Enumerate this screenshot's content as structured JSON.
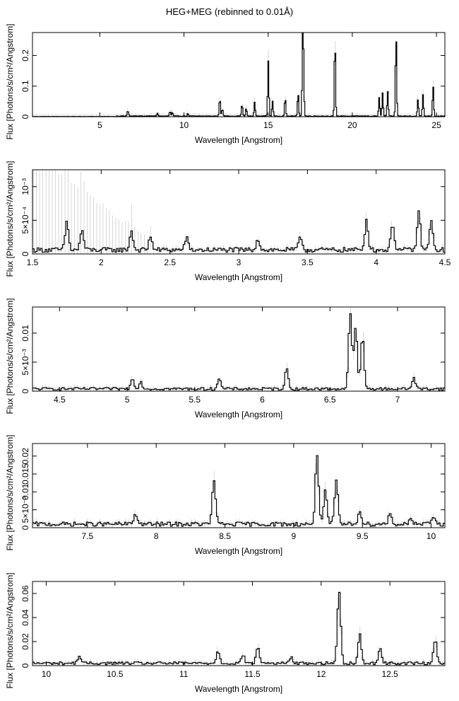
{
  "title": "HEG+MEG (rebinned to 0.01Å)",
  "colors": {
    "line": "#000000",
    "errorbar": "#bdbdbd",
    "background": "#ffffff"
  },
  "chart_data": [
    {
      "type": "line",
      "xlabel": "Wavelength [Angstrom]",
      "ylabel": "Flux [Photons/s/cm²/Angstrom]",
      "xlim": [
        1.0,
        25.5
      ],
      "ylim": [
        0,
        0.275
      ],
      "xticks": [
        5,
        10,
        15,
        20,
        25
      ],
      "yticks": [
        0,
        0.1,
        0.2
      ],
      "ytick_labels": [
        "0",
        "0.1",
        "0.2"
      ],
      "baseline": 0.002,
      "peaks": [
        [
          6.65,
          0.013
        ],
        [
          6.7,
          0.008
        ],
        [
          8.42,
          0.01
        ],
        [
          9.17,
          0.016
        ],
        [
          9.31,
          0.012
        ],
        [
          10.23,
          0.008
        ],
        [
          12.13,
          0.06
        ],
        [
          12.28,
          0.024
        ],
        [
          13.45,
          0.04
        ],
        [
          13.7,
          0.025
        ],
        [
          14.2,
          0.045
        ],
        [
          15.01,
          0.18
        ],
        [
          15.26,
          0.05
        ],
        [
          16.01,
          0.06
        ],
        [
          16.78,
          0.075
        ],
        [
          17.05,
          0.21
        ],
        [
          17.1,
          0.155
        ],
        [
          18.97,
          0.25
        ],
        [
          21.6,
          0.06
        ],
        [
          21.8,
          0.075
        ],
        [
          22.1,
          0.08
        ],
        [
          22.6,
          0.27
        ],
        [
          23.9,
          0.055
        ],
        [
          24.2,
          0.07
        ],
        [
          24.8,
          0.1
        ]
      ]
    },
    {
      "type": "line",
      "xlabel": "Wavelength [Angstrom]",
      "ylabel": "Flux [Photons/s/cm²/Angstrom]",
      "xlim": [
        1.5,
        4.5
      ],
      "ylim": [
        0,
        0.00125
      ],
      "xticks": [
        1.5,
        2,
        2.5,
        3,
        3.5,
        4,
        4.5
      ],
      "yticks": [
        0,
        0.0005,
        0.001
      ],
      "ytick_labels": [
        "0",
        "5×10⁻⁴",
        "10⁻³"
      ],
      "baseline": 6e-05,
      "peaks": [
        [
          1.75,
          0.00042
        ],
        [
          1.86,
          0.0003
        ],
        [
          2.22,
          0.00028
        ],
        [
          2.36,
          0.0002
        ],
        [
          2.62,
          0.00018
        ],
        [
          3.14,
          0.00017
        ],
        [
          3.45,
          0.0002
        ],
        [
          3.93,
          0.00045
        ],
        [
          4.12,
          0.0004
        ],
        [
          4.31,
          0.00055
        ],
        [
          4.4,
          0.00042
        ]
      ]
    },
    {
      "type": "line",
      "xlabel": "Wavelength [Angstrom]",
      "ylabel": "Flux [Photons/s/cm²/Angstrom]",
      "xlim": [
        4.3,
        7.35
      ],
      "ylim": [
        0,
        0.0145
      ],
      "xticks": [
        4.5,
        5,
        5.5,
        6,
        6.5,
        7
      ],
      "yticks": [
        0,
        0.005,
        0.01
      ],
      "ytick_labels": [
        "0",
        "5×10⁻³",
        "0.01"
      ],
      "baseline": 0.0004,
      "peaks": [
        [
          5.04,
          0.0018
        ],
        [
          5.1,
          0.0012
        ],
        [
          5.68,
          0.0018
        ],
        [
          6.18,
          0.0035
        ],
        [
          6.65,
          0.013
        ],
        [
          6.69,
          0.0105
        ],
        [
          6.74,
          0.009
        ],
        [
          7.12,
          0.002
        ]
      ]
    },
    {
      "type": "line",
      "xlabel": "Wavelength [Angstrom]",
      "ylabel": "Flux [Photons/s/cm²/Angstrom]",
      "xlim": [
        7.1,
        10.1
      ],
      "ylim": [
        0,
        0.0235
      ],
      "xticks": [
        7.5,
        8,
        8.5,
        9,
        9.5,
        10
      ],
      "yticks": [
        0,
        0.005,
        0.01,
        0.015,
        0.02
      ],
      "ytick_labels": [
        "0",
        "5×10⁻³",
        "0.01",
        "0.015",
        "0.02"
      ],
      "baseline": 0.001,
      "peaks": [
        [
          7.85,
          0.003
        ],
        [
          8.42,
          0.0125
        ],
        [
          9.17,
          0.0195
        ],
        [
          9.23,
          0.009
        ],
        [
          9.31,
          0.012
        ],
        [
          9.48,
          0.004
        ],
        [
          9.7,
          0.003
        ],
        [
          9.85,
          0.002
        ],
        [
          10.02,
          0.002
        ]
      ]
    },
    {
      "type": "line",
      "xlabel": "Wavelength [Angstrom]",
      "ylabel": "Flux [Photons/s/cm²/Angstrom]",
      "xlim": [
        9.9,
        12.9
      ],
      "ylim": [
        0,
        0.07
      ],
      "xticks": [
        10,
        10.5,
        11,
        11.5,
        12,
        12.5
      ],
      "yticks": [
        0,
        0.02,
        0.04,
        0.06
      ],
      "ytick_labels": [
        "0",
        "0.02",
        "0.04",
        "0.06"
      ],
      "baseline": 0.002,
      "peaks": [
        [
          10.24,
          0.006
        ],
        [
          11.25,
          0.01
        ],
        [
          11.43,
          0.007
        ],
        [
          11.54,
          0.013
        ],
        [
          11.78,
          0.005
        ],
        [
          12.13,
          0.06
        ],
        [
          12.28,
          0.024
        ],
        [
          12.43,
          0.012
        ],
        [
          12.83,
          0.02
        ]
      ]
    }
  ]
}
